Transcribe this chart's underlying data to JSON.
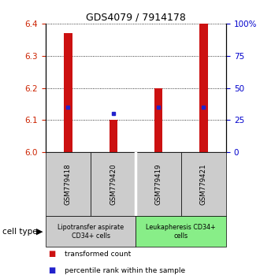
{
  "title": "GDS4079 / 7914178",
  "samples": [
    "GSM779418",
    "GSM779420",
    "GSM779419",
    "GSM779421"
  ],
  "transformed_counts": [
    6.37,
    6.1,
    6.2,
    6.4
  ],
  "percentile_ranks": [
    6.14,
    6.12,
    6.14,
    6.14
  ],
  "ylim_left": [
    6.0,
    6.4
  ],
  "ylim_right": [
    0,
    100
  ],
  "yticks_left": [
    6.0,
    6.1,
    6.2,
    6.3,
    6.4
  ],
  "yticks_right": [
    0,
    25,
    50,
    75,
    100
  ],
  "ytick_labels_right": [
    "0",
    "25",
    "50",
    "75",
    "100%"
  ],
  "bar_color": "#cc1111",
  "dot_color": "#2222cc",
  "bar_width": 0.18,
  "cell_types": [
    {
      "label": "Lipotransfer aspirate\nCD34+ cells",
      "samples": [
        0,
        1
      ],
      "color": "#cccccc"
    },
    {
      "label": "Leukapheresis CD34+\ncells",
      "samples": [
        2,
        3
      ],
      "color": "#88ee88"
    }
  ],
  "cell_type_label": "cell type",
  "legend_items": [
    {
      "color": "#cc1111",
      "label": "transformed count"
    },
    {
      "color": "#2222cc",
      "label": "percentile rank within the sample"
    }
  ],
  "grid_color": "#000000",
  "left_color": "#cc2200",
  "right_color": "#0000cc"
}
